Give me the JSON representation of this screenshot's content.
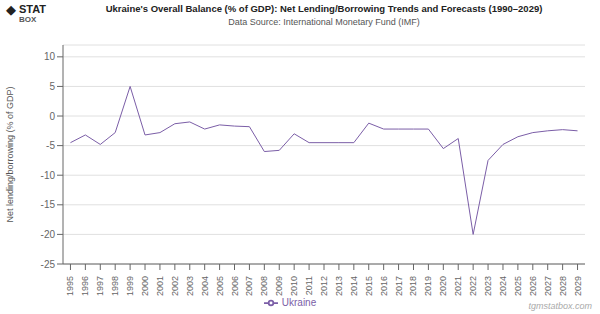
{
  "chart_data": {
    "type": "line",
    "title": "Ukraine's Overall Balance (% of GDP): Net Lending/Borrowing Trends and Forecasts (1990–2029)",
    "subtitle": "Data Source: International Monetary Fund (IMF)",
    "ylabel": "Net lending/borrowing (% of GDP)",
    "annotations": [
      "◆",
      "STAT",
      "BOX",
      "tgmstatbox.com"
    ],
    "x": [
      1995,
      1996,
      1997,
      1998,
      1999,
      2000,
      2001,
      2002,
      2003,
      2004,
      2005,
      2006,
      2007,
      2008,
      2009,
      2010,
      2011,
      2012,
      2013,
      2014,
      2015,
      2016,
      2017,
      2018,
      2019,
      2020,
      2021,
      2022,
      2023,
      2024,
      2025,
      2026,
      2027,
      2028,
      2029
    ],
    "xlim": [
      1994.5,
      2029.5
    ],
    "xticks": [
      1995,
      1996,
      1997,
      1998,
      1999,
      2000,
      2001,
      2002,
      2003,
      2004,
      2005,
      2006,
      2007,
      2008,
      2009,
      2010,
      2011,
      2012,
      2013,
      2014,
      2015,
      2016,
      2017,
      2018,
      2019,
      2020,
      2021,
      2022,
      2023,
      2024,
      2025,
      2026,
      2027,
      2028,
      2029
    ],
    "ylim": [
      -25,
      12
    ],
    "yticks": [
      -25,
      -20,
      -15,
      -10,
      -5,
      0,
      5,
      10
    ],
    "series": [
      {
        "name": "Ukraine",
        "color": "#7B5EA7",
        "values": [
          -4.5,
          -3.2,
          -4.8,
          -2.8,
          5.0,
          -3.2,
          -2.8,
          -1.3,
          -1.0,
          -2.2,
          -1.5,
          -1.7,
          -1.8,
          -6.0,
          -5.8,
          -3.0,
          -4.5,
          -4.5,
          -4.5,
          -4.5,
          -1.2,
          -2.2,
          -2.2,
          -2.2,
          -2.2,
          -5.5,
          -3.8,
          -20.0,
          -7.5,
          -4.8,
          -3.5,
          -2.8,
          -2.5,
          -2.3,
          -2.5
        ]
      }
    ],
    "grid": "y",
    "legend": "bottom"
  }
}
